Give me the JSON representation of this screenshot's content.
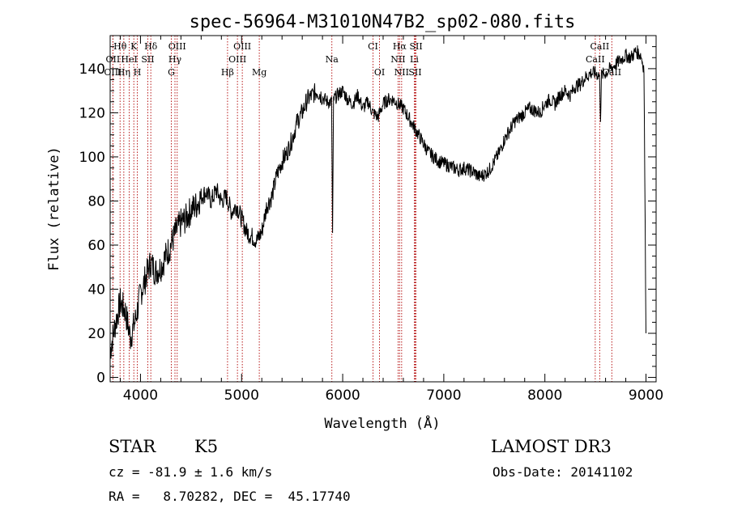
{
  "chart_data": {
    "type": "line",
    "title": "spec-56964-M31010N47B2_sp02-080.fits",
    "xlabel": "Wavelength (Å)",
    "ylabel": "Flux (relative)",
    "xlim": [
      3700,
      9100
    ],
    "ylim": [
      -2,
      155
    ],
    "x_ticks": [
      4000,
      5000,
      6000,
      7000,
      8000,
      9000
    ],
    "y_ticks": [
      0,
      20,
      40,
      60,
      80,
      100,
      120,
      140
    ],
    "grid": false,
    "series": [
      {
        "x": [
          3700,
          3750,
          3800,
          3850,
          3900,
          3950,
          4000,
          4050,
          4100,
          4150,
          4200,
          4250,
          4300,
          4350,
          4400,
          4450,
          4500,
          4550,
          4600,
          4650,
          4700,
          4750,
          4800,
          4850,
          4900,
          4950,
          5000,
          5050,
          5100,
          5150,
          5200,
          5250,
          5300,
          5350,
          5400,
          5450,
          5500,
          5550,
          5600,
          5650,
          5700,
          5750,
          5800,
          5850,
          5890,
          5900,
          5910,
          5950,
          6000,
          6050,
          6100,
          6150,
          6200,
          6250,
          6300,
          6350,
          6400,
          6450,
          6500,
          6550,
          6600,
          6650,
          6700,
          6750,
          6800,
          6850,
          6900,
          6950,
          7000,
          7050,
          7100,
          7150,
          7200,
          7250,
          7300,
          7350,
          7400,
          7450,
          7500,
          7550,
          7600,
          7650,
          7700,
          7750,
          7800,
          7850,
          7900,
          7950,
          8000,
          8050,
          8100,
          8150,
          8200,
          8250,
          8300,
          8350,
          8400,
          8450,
          8500,
          8540,
          8550,
          8560,
          8600,
          8650,
          8700,
          8750,
          8800,
          8850,
          8900,
          8950,
          8980,
          9000
        ],
        "values": [
          12,
          24,
          34,
          30,
          18,
          26,
          38,
          45,
          52,
          48,
          50,
          55,
          60,
          66,
          70,
          72,
          76,
          78,
          82,
          84,
          80,
          85,
          80,
          82,
          75,
          78,
          72,
          66,
          64,
          62,
          66,
          78,
          82,
          92,
          98,
          102,
          108,
          116,
          120,
          126,
          128,
          130,
          127,
          125,
          125,
          65,
          126,
          128,
          130,
          126,
          124,
          128,
          122,
          125,
          120,
          118,
          124,
          126,
          126,
          124,
          122,
          118,
          114,
          110,
          106,
          102,
          100,
          98,
          97,
          96,
          95,
          94,
          95,
          94,
          93,
          91,
          92,
          94,
          98,
          102,
          108,
          112,
          116,
          118,
          120,
          122,
          121,
          120,
          124,
          126,
          124,
          128,
          130,
          128,
          132,
          133,
          136,
          138,
          138,
          137,
          118,
          137,
          138,
          140,
          142,
          144,
          146,
          145,
          148,
          146,
          140,
          20
        ]
      }
    ],
    "emission_lines": [
      {
        "label": "Hθ",
        "x": 3798,
        "row": 0
      },
      {
        "label": "K",
        "x": 3934,
        "row": 0
      },
      {
        "label": "Hδ",
        "x": 4102,
        "row": 0
      },
      {
        "label": "OIII",
        "x": 4363,
        "row": 0
      },
      {
        "label": "OIII",
        "x": 5007,
        "row": 0
      },
      {
        "label": "Na",
        "x": 5893,
        "row": 1
      },
      {
        "label": "CI",
        "x": 6300,
        "row": 0
      },
      {
        "label": "Hα",
        "x": 6563,
        "row": 0
      },
      {
        "label": "SII",
        "x": 6725,
        "row": 0
      },
      {
        "label": "CaII",
        "x": 8542,
        "row": 0
      },
      {
        "label": "OII",
        "x": 3727,
        "row": 1
      },
      {
        "label": "HeI",
        "x": 3889,
        "row": 1
      },
      {
        "label": "SII",
        "x": 4072,
        "row": 1
      },
      {
        "label": "Hγ",
        "x": 4341,
        "row": 1
      },
      {
        "label": "OIII",
        "x": 4959,
        "row": 1
      },
      {
        "label": "NII",
        "x": 6548,
        "row": 1
      },
      {
        "label": "Li",
        "x": 6708,
        "row": 1
      },
      {
        "label": "CaII",
        "x": 8498,
        "row": 1
      },
      {
        "label": "OIII",
        "x": 3727,
        "row": 2
      },
      {
        "label": "Hη",
        "x": 3835,
        "row": 2
      },
      {
        "label": "H",
        "x": 3969,
        "row": 2
      },
      {
        "label": "G",
        "x": 4305,
        "row": 2
      },
      {
        "label": "Hβ",
        "x": 4861,
        "row": 2
      },
      {
        "label": "Mg",
        "x": 5175,
        "row": 2
      },
      {
        "label": "OI",
        "x": 6364,
        "row": 2
      },
      {
        "label": "NII",
        "x": 6583,
        "row": 2
      },
      {
        "label": "SII",
        "x": 6716,
        "row": 2
      },
      {
        "label": "CaII",
        "x": 8662,
        "row": 2
      }
    ],
    "line_color": "#b00000"
  },
  "info": {
    "object_class": "STAR",
    "subclass": "K5",
    "redshift": "cz = -81.9 ± 1.6 km/s",
    "coords": "RA =   8.70282, DEC =  45.17740",
    "survey": "LAMOST DR3",
    "obs_date": "Obs-Date: 20141102"
  }
}
